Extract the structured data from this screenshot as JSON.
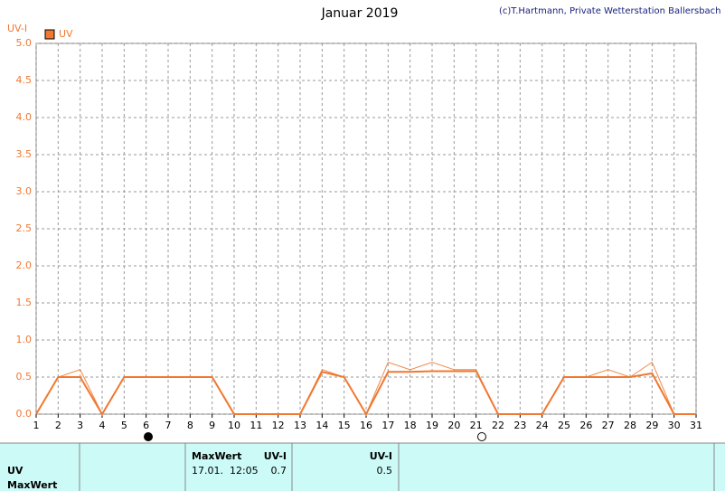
{
  "chart_data": {
    "type": "line",
    "title": "Januar 2019",
    "credit": "(c)T.Hartmann, Private Wetterstation Ballersbach",
    "y_label": "UV-I",
    "x": [
      1,
      2,
      3,
      4,
      5,
      6,
      7,
      8,
      9,
      10,
      11,
      12,
      13,
      14,
      15,
      16,
      17,
      18,
      19,
      20,
      21,
      22,
      23,
      24,
      25,
      26,
      27,
      28,
      29,
      30,
      31
    ],
    "xlim": [
      1,
      31
    ],
    "xticks": [
      1,
      2,
      3,
      4,
      5,
      6,
      7,
      8,
      9,
      10,
      11,
      12,
      13,
      14,
      15,
      16,
      17,
      18,
      19,
      20,
      21,
      22,
      23,
      24,
      25,
      26,
      27,
      28,
      29,
      30,
      31
    ],
    "ylim": [
      0,
      5
    ],
    "yticks": [
      {
        "value": 0,
        "label": "0.0"
      },
      {
        "value": 0.5,
        "label": "0.5"
      },
      {
        "value": 1,
        "label": "1.0"
      },
      {
        "value": 1.5,
        "label": "1.5"
      },
      {
        "value": 2,
        "label": "2.0"
      },
      {
        "value": 2.5,
        "label": "2.5"
      },
      {
        "value": 3,
        "label": "3.0"
      },
      {
        "value": 3.5,
        "label": "3.5"
      },
      {
        "value": 4,
        "label": "4.0"
      },
      {
        "value": 4.5,
        "label": "4.5"
      },
      {
        "value": 5,
        "label": "5.0"
      }
    ],
    "grid": true,
    "series": [
      {
        "name": "UV",
        "color": "#f07830",
        "width": 2,
        "values": [
          0,
          0.5,
          0.5,
          0,
          0.5,
          0.5,
          0.5,
          0.5,
          0.5,
          0,
          0,
          0,
          0,
          0.57,
          0.5,
          0,
          0.57,
          0.57,
          0.58,
          0.58,
          0.58,
          0,
          0,
          0,
          0.5,
          0.5,
          0.5,
          0.5,
          0.55,
          0,
          0
        ]
      },
      {
        "color": "#f08848",
        "width": 1,
        "values": [
          0,
          0.5,
          0.6,
          0,
          0.5,
          0.5,
          0.5,
          0.5,
          0.5,
          0,
          0,
          0,
          0,
          0.6,
          0.5,
          0,
          0.7,
          0.6,
          0.7,
          0.6,
          0.6,
          0,
          0,
          0,
          0.5,
          0.5,
          0.6,
          0.5,
          0.7,
          0,
          0
        ]
      }
    ]
  },
  "table": {
    "row_labels": [
      "UV",
      "MaxWert"
    ],
    "max_header": "MaxWert",
    "max_unit": "UV-I",
    "max_time": "17.01.  12:05",
    "max_value": "0.7",
    "avg_unit": "UV-I",
    "avg_value": "0.5"
  }
}
